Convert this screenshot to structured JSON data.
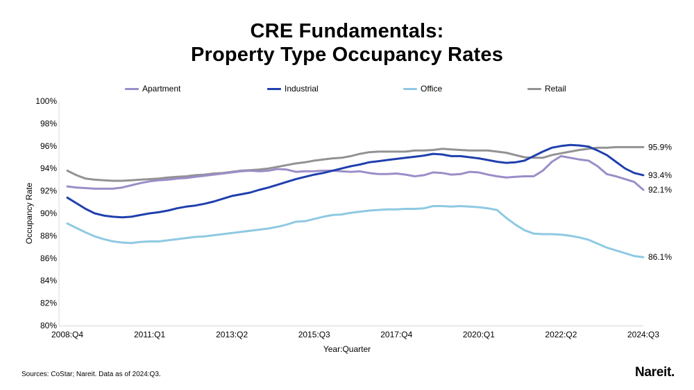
{
  "title_line1": "CRE Fundamentals:",
  "title_line2": "Property Type Occupancy Rates",
  "source": "Sources: CoStar; Nareit. Data as of 2024:Q3.",
  "logo": "Nareit",
  "logo_dot": ".",
  "chart_data": {
    "type": "line",
    "title": "CRE Fundamentals: Property Type Occupancy Rates",
    "xlabel": "Year:Quarter",
    "ylabel": "Occupancy Rate",
    "ylim": [
      80,
      100
    ],
    "y_ticks": [
      "80%",
      "82%",
      "84%",
      "86%",
      "88%",
      "90%",
      "92%",
      "94%",
      "96%",
      "98%",
      "100%"
    ],
    "y_tick_values": [
      80,
      82,
      84,
      86,
      88,
      90,
      92,
      94,
      96,
      98,
      100
    ],
    "x_start": "2008:Q4",
    "x_end": "2024:Q3",
    "x_count": 64,
    "x_ticks": [
      {
        "label": "2008:Q4",
        "index": 0
      },
      {
        "label": "2011:Q1",
        "index": 9
      },
      {
        "label": "2013:Q2",
        "index": 18
      },
      {
        "label": "2015:Q3",
        "index": 27
      },
      {
        "label": "2017:Q4",
        "index": 36
      },
      {
        "label": "2020:Q1",
        "index": 45
      },
      {
        "label": "2022:Q2",
        "index": 54
      },
      {
        "label": "2024:Q3",
        "index": 63
      }
    ],
    "grid": false,
    "legend_position": "top",
    "series": [
      {
        "name": "Apartment",
        "color": "#9b8dc8",
        "end_label": "92.1%",
        "values": [
          92.4,
          92.3,
          92.25,
          92.2,
          92.2,
          92.2,
          92.3,
          92.5,
          92.7,
          92.85,
          92.95,
          93.0,
          93.1,
          93.15,
          93.25,
          93.35,
          93.45,
          93.55,
          93.65,
          93.75,
          93.8,
          93.75,
          93.8,
          93.95,
          93.9,
          93.7,
          93.75,
          93.75,
          93.8,
          93.8,
          93.75,
          93.7,
          93.75,
          93.6,
          93.5,
          93.5,
          93.55,
          93.45,
          93.3,
          93.4,
          93.65,
          93.6,
          93.45,
          93.5,
          93.7,
          93.65,
          93.45,
          93.3,
          93.2,
          93.25,
          93.3,
          93.3,
          93.8,
          94.6,
          95.1,
          94.95,
          94.8,
          94.7,
          94.2,
          93.5,
          93.3,
          93.05,
          92.8,
          92.1
        ]
      },
      {
        "name": "Industrial",
        "color": "#1f3fad",
        "end_label": "93.4%",
        "values": [
          91.4,
          90.9,
          90.4,
          90.0,
          89.8,
          89.7,
          89.65,
          89.7,
          89.85,
          90.0,
          90.1,
          90.25,
          90.45,
          90.6,
          90.7,
          90.85,
          91.05,
          91.3,
          91.55,
          91.7,
          91.85,
          92.1,
          92.3,
          92.55,
          92.8,
          93.05,
          93.25,
          93.45,
          93.6,
          93.8,
          94.0,
          94.2,
          94.35,
          94.55,
          94.65,
          94.75,
          94.85,
          94.95,
          95.05,
          95.15,
          95.3,
          95.25,
          95.1,
          95.1,
          95.0,
          94.9,
          94.75,
          94.6,
          94.5,
          94.55,
          94.7,
          95.1,
          95.5,
          95.85,
          96.0,
          96.1,
          96.05,
          95.95,
          95.6,
          95.2,
          94.6,
          94.0,
          93.6,
          93.4
        ]
      },
      {
        "name": "Office",
        "color": "#8ec9e2",
        "end_label": "86.1%",
        "values": [
          89.1,
          88.7,
          88.3,
          87.95,
          87.7,
          87.5,
          87.4,
          87.35,
          87.45,
          87.5,
          87.5,
          87.6,
          87.7,
          87.8,
          87.9,
          87.95,
          88.05,
          88.15,
          88.25,
          88.35,
          88.45,
          88.55,
          88.65,
          88.8,
          89.0,
          89.25,
          89.3,
          89.5,
          89.7,
          89.85,
          89.9,
          90.05,
          90.15,
          90.25,
          90.3,
          90.35,
          90.35,
          90.4,
          90.4,
          90.45,
          90.65,
          90.65,
          90.6,
          90.65,
          90.6,
          90.55,
          90.45,
          90.3,
          89.6,
          89.0,
          88.5,
          88.2,
          88.15,
          88.15,
          88.1,
          88.0,
          87.85,
          87.65,
          87.3,
          86.95,
          86.7,
          86.45,
          86.2,
          86.1
        ]
      },
      {
        "name": "Retail",
        "color": "#929292",
        "end_label": "95.9%",
        "values": [
          93.8,
          93.4,
          93.1,
          93.0,
          92.95,
          92.9,
          92.9,
          92.95,
          93.0,
          93.05,
          93.1,
          93.2,
          93.25,
          93.3,
          93.4,
          93.45,
          93.55,
          93.6,
          93.7,
          93.8,
          93.85,
          93.9,
          94.0,
          94.15,
          94.3,
          94.45,
          94.55,
          94.7,
          94.8,
          94.9,
          94.95,
          95.1,
          95.3,
          95.45,
          95.5,
          95.5,
          95.5,
          95.5,
          95.6,
          95.6,
          95.65,
          95.75,
          95.7,
          95.65,
          95.6,
          95.6,
          95.6,
          95.5,
          95.4,
          95.2,
          95.0,
          94.95,
          94.95,
          95.2,
          95.35,
          95.5,
          95.65,
          95.75,
          95.85,
          95.85,
          95.9,
          95.9,
          95.9,
          95.9
        ]
      }
    ]
  }
}
